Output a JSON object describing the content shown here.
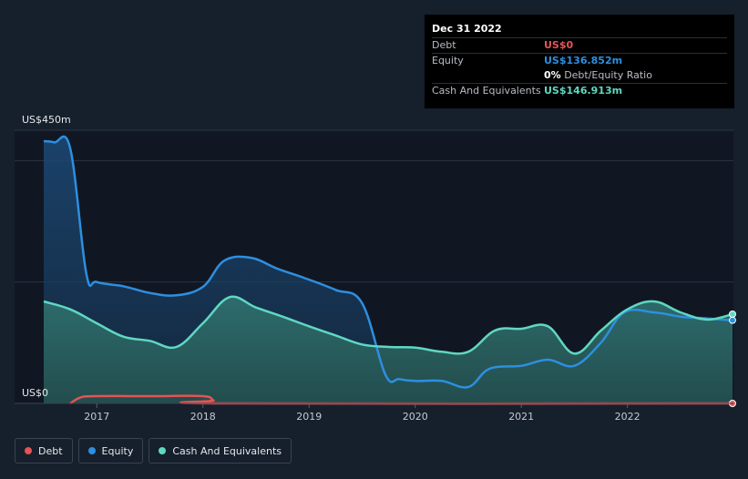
{
  "chart_data": {
    "type": "area",
    "y_top_label": "US$450m",
    "y_bottom_label": "US$0",
    "ylim": [
      0,
      450
    ],
    "xlim": [
      2016.5,
      2022.99
    ],
    "x_ticks": [
      2017,
      2018,
      2019,
      2020,
      2021,
      2022
    ],
    "x_tick_labels": [
      "2017",
      "2018",
      "2019",
      "2020",
      "2021",
      "2022"
    ],
    "series": [
      {
        "name": "Debt",
        "color": "#e45454",
        "points": [
          [
            2016.75,
            0
          ],
          [
            2016.85,
            10
          ],
          [
            2017.0,
            12
          ],
          [
            2017.5,
            12
          ],
          [
            2018.0,
            12
          ],
          [
            2018.1,
            5
          ],
          [
            2018.2,
            0
          ],
          [
            2022.99,
            0
          ]
        ]
      },
      {
        "name": "Equity",
        "color": "#2d8fe0",
        "points": [
          [
            2016.5,
            432
          ],
          [
            2016.6,
            430
          ],
          [
            2016.75,
            420
          ],
          [
            2016.9,
            215
          ],
          [
            2017.0,
            200
          ],
          [
            2017.25,
            193
          ],
          [
            2017.5,
            182
          ],
          [
            2017.75,
            178
          ],
          [
            2018.0,
            192
          ],
          [
            2018.2,
            235
          ],
          [
            2018.45,
            240
          ],
          [
            2018.7,
            222
          ],
          [
            2018.95,
            207
          ],
          [
            2019.25,
            187
          ],
          [
            2019.5,
            165
          ],
          [
            2019.72,
            47
          ],
          [
            2019.85,
            40
          ],
          [
            2020.0,
            37
          ],
          [
            2020.25,
            37
          ],
          [
            2020.5,
            27
          ],
          [
            2020.7,
            57
          ],
          [
            2021.0,
            62
          ],
          [
            2021.25,
            72
          ],
          [
            2021.5,
            62
          ],
          [
            2021.75,
            100
          ],
          [
            2021.97,
            150
          ],
          [
            2022.25,
            150
          ],
          [
            2022.5,
            143
          ],
          [
            2022.75,
            140
          ],
          [
            2022.99,
            137
          ]
        ]
      },
      {
        "name": "Cash And Equivalents",
        "color": "#5fd8c2",
        "points": [
          [
            2016.5,
            168
          ],
          [
            2016.75,
            155
          ],
          [
            2017.0,
            132
          ],
          [
            2017.25,
            110
          ],
          [
            2017.5,
            103
          ],
          [
            2017.75,
            93
          ],
          [
            2018.0,
            132
          ],
          [
            2018.25,
            175
          ],
          [
            2018.5,
            158
          ],
          [
            2018.75,
            143
          ],
          [
            2019.0,
            127
          ],
          [
            2019.25,
            112
          ],
          [
            2019.5,
            97
          ],
          [
            2019.75,
            93
          ],
          [
            2020.0,
            92
          ],
          [
            2020.25,
            85
          ],
          [
            2020.5,
            85
          ],
          [
            2020.75,
            120
          ],
          [
            2021.0,
            123
          ],
          [
            2021.25,
            127
          ],
          [
            2021.5,
            82
          ],
          [
            2021.75,
            120
          ],
          [
            2022.0,
            155
          ],
          [
            2022.25,
            168
          ],
          [
            2022.5,
            150
          ],
          [
            2022.75,
            138
          ],
          [
            2022.99,
            147
          ]
        ]
      }
    ]
  },
  "tooltip": {
    "date": "Dec 31 2022",
    "debt_label": "Debt",
    "debt_value": "US$0",
    "equity_label": "Equity",
    "equity_value": "US$136.852m",
    "ratio_value": "0%",
    "ratio_label": "Debt/Equity Ratio",
    "cash_label": "Cash And Equivalents",
    "cash_value": "US$146.913m"
  },
  "legend": [
    {
      "label": "Debt",
      "color": "#e45454"
    },
    {
      "label": "Equity",
      "color": "#2d8fe0"
    },
    {
      "label": "Cash And Equivalents",
      "color": "#5fd8c2"
    }
  ],
  "colors": {
    "background": "#161f2c",
    "plot_bg": "#111722",
    "grid": "#2c3442"
  }
}
